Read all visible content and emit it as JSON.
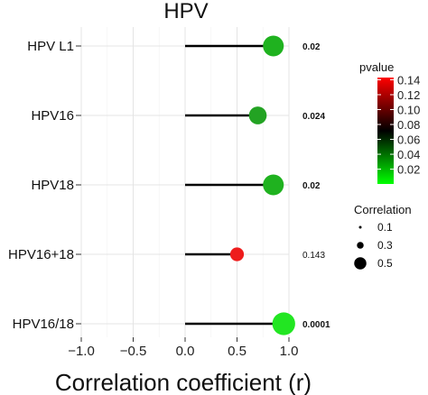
{
  "chart_data": {
    "type": "lollipop",
    "title": "HPV",
    "xlabel": "Correlation coefficient (r)",
    "xlim": [
      -1.0,
      1.0
    ],
    "x_ticks": [
      -1.0,
      -0.5,
      0.0,
      0.5,
      1.0
    ],
    "x_tick_labels": [
      "−1.0",
      "−0.5",
      "0.0",
      "0.5",
      "1.0"
    ],
    "grid": true,
    "lollipop_baseline": 0.0,
    "categories": [
      "HPV L1",
      "HPV16",
      "HPV18",
      "HPV16+18",
      "HPV16/18"
    ],
    "values": [
      0.85,
      0.7,
      0.85,
      0.5,
      0.95
    ],
    "pvalues": [
      0.02,
      0.024,
      0.02,
      0.143,
      0.0001
    ],
    "pvalue_labels": [
      "0.02",
      "0.024",
      "0.02",
      "0.143",
      "0.0001"
    ],
    "pvalue_label_bold": [
      true,
      true,
      true,
      false,
      true
    ],
    "point_colors": [
      "#1fb21f",
      "#23a323",
      "#1fb21f",
      "#ee1c1c",
      "#22e622"
    ],
    "color_legend": {
      "title": "pvalue",
      "ticks": [
        0.14,
        0.12,
        0.1,
        0.08,
        0.06,
        0.04,
        0.02
      ],
      "tick_labels": [
        "0.14",
        "0.12",
        "0.10",
        "0.08",
        "0.06",
        "0.04",
        "0.02"
      ],
      "range": [
        0.0001,
        0.143
      ],
      "colors": {
        "high": "#ff0000",
        "mid": "#000000",
        "low": "#00ff00"
      }
    },
    "size_legend": {
      "title": "Correlation",
      "values": [
        0.1,
        0.3,
        0.5
      ],
      "labels": [
        "0.1",
        "0.3",
        "0.5"
      ]
    },
    "legend_position": "right"
  }
}
